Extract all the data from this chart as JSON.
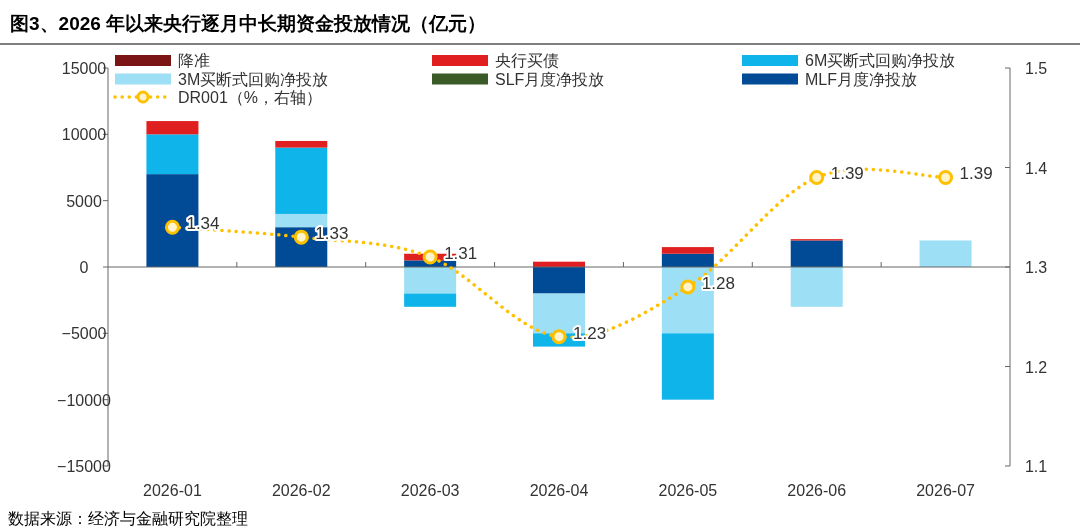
{
  "chart_data": {
    "type": "bar",
    "title": "图3、2026 年以来央行逐月中长期资金投放情况（亿元）",
    "categories": [
      "2026-01",
      "2026-02",
      "2026-03",
      "2026-04",
      "2026-05",
      "2026-06",
      "2026-07"
    ],
    "stacked": true,
    "legend": "top",
    "marker": "circle",
    "line_style": "dotted",
    "series": [
      {
        "name": "降准",
        "color": "#7b1515",
        "values": [
          null,
          null,
          null,
          null,
          null,
          null,
          null
        ]
      },
      {
        "name": "SLF月度净投放",
        "color": "#3a5a28",
        "values": [
          null,
          null,
          null,
          null,
          null,
          null,
          null
        ]
      },
      {
        "name": "MLF月度净投放",
        "color": "#004a96",
        "values": [
          7000,
          3000,
          500,
          -2000,
          1000,
          2000,
          null
        ]
      },
      {
        "name": "3M买断式回购净投放",
        "color": "#9ddff5",
        "values": [
          null,
          1000,
          -2000,
          -3000,
          -5000,
          -3000,
          2000
        ]
      },
      {
        "name": "6M买断式回购净投放",
        "color": "#0eb4ea",
        "values": [
          3000,
          5000,
          -1000,
          -1000,
          -5000,
          null,
          null
        ]
      },
      {
        "name": "央行买债",
        "color": "#e02020",
        "values": [
          1000,
          500,
          500,
          400,
          500,
          100,
          null
        ]
      },
      {
        "name": "DR001（%，右轴）",
        "type": "line",
        "axis": "y2",
        "color": "#ffc000",
        "values": [
          1.34,
          1.33,
          1.31,
          1.23,
          1.28,
          1.39,
          1.39
        ],
        "value_labels": [
          "1.34",
          "1.33",
          "1.31",
          "1.23",
          "1.28",
          "1.39",
          "1.39"
        ]
      }
    ],
    "ylim": [
      -15000,
      15000
    ],
    "yticks": [
      -15000,
      -10000,
      -5000,
      0,
      5000,
      10000,
      15000
    ],
    "y2lim": [
      1.1,
      1.5
    ],
    "y2ticks": [
      1.1,
      1.2,
      1.3,
      1.4,
      1.5
    ],
    "annotations": [
      "数据来源：经济与金融研究院整理"
    ]
  }
}
